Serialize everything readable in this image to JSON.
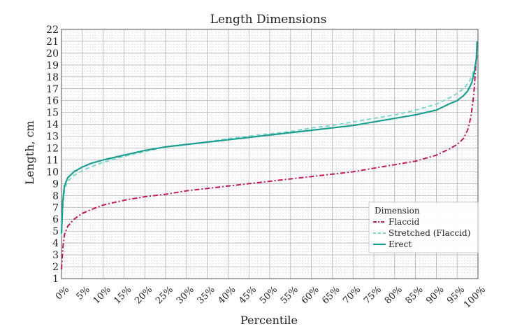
{
  "chart_data": {
    "type": "line",
    "title": "Length Dimensions",
    "xlabel": "Percentile",
    "ylabel": "Length, cm",
    "xlim": [
      0,
      100
    ],
    "ylim": [
      1,
      22
    ],
    "x_ticks": [
      0,
      5,
      10,
      15,
      20,
      25,
      30,
      35,
      40,
      45,
      50,
      55,
      60,
      65,
      70,
      75,
      80,
      85,
      90,
      95,
      100
    ],
    "x_tick_labels": [
      "0%",
      "5%",
      "10%",
      "15%",
      "20%",
      "25%",
      "30%",
      "35%",
      "40%",
      "45%",
      "50%",
      "55%",
      "60%",
      "65%",
      "70%",
      "75%",
      "80%",
      "85%",
      "90%",
      "95%",
      "100%"
    ],
    "y_ticks": [
      1,
      2,
      3,
      4,
      5,
      6,
      7,
      8,
      9,
      10,
      11,
      12,
      13,
      14,
      15,
      16,
      17,
      18,
      19,
      20,
      21,
      22
    ],
    "grid": true,
    "legend": {
      "title": "Dimension",
      "position": "bottom-right"
    },
    "series": [
      {
        "name": "Flaccid",
        "color": "#c2185b",
        "style": "dashdot",
        "points": [
          [
            0,
            1.8
          ],
          [
            0.3,
            3.5
          ],
          [
            0.7,
            4.7
          ],
          [
            1.5,
            5.4
          ],
          [
            3,
            6
          ],
          [
            5,
            6.5
          ],
          [
            7,
            6.8
          ],
          [
            10,
            7.2
          ],
          [
            15,
            7.6
          ],
          [
            20,
            7.9
          ],
          [
            25,
            8.1
          ],
          [
            30,
            8.4
          ],
          [
            35,
            8.6
          ],
          [
            40,
            8.8
          ],
          [
            45,
            9.0
          ],
          [
            50,
            9.2
          ],
          [
            55,
            9.4
          ],
          [
            60,
            9.6
          ],
          [
            65,
            9.8
          ],
          [
            70,
            10.0
          ],
          [
            75,
            10.3
          ],
          [
            80,
            10.6
          ],
          [
            85,
            10.9
          ],
          [
            90,
            11.4
          ],
          [
            93,
            11.9
          ],
          [
            95,
            12.3
          ],
          [
            96.5,
            12.8
          ],
          [
            97.5,
            13.5
          ],
          [
            98.3,
            14.6
          ],
          [
            99,
            16.5
          ],
          [
            99.5,
            19.0
          ],
          [
            99.8,
            20.0
          ]
        ]
      },
      {
        "name": "Stretched (Flaccid)",
        "color": "#7fd6cc",
        "style": "dashed",
        "points": [
          [
            0,
            4.6
          ],
          [
            0.3,
            7.0
          ],
          [
            0.7,
            8.5
          ],
          [
            1.5,
            9.2
          ],
          [
            3,
            9.7
          ],
          [
            5,
            10.1
          ],
          [
            7,
            10.4
          ],
          [
            10,
            10.8
          ],
          [
            15,
            11.3
          ],
          [
            20,
            11.7
          ],
          [
            25,
            12.1
          ],
          [
            30,
            12.3
          ],
          [
            35,
            12.5
          ],
          [
            40,
            12.8
          ],
          [
            45,
            13.0
          ],
          [
            50,
            13.2
          ],
          [
            55,
            13.4
          ],
          [
            60,
            13.7
          ],
          [
            65,
            13.9
          ],
          [
            70,
            14.2
          ],
          [
            75,
            14.5
          ],
          [
            80,
            14.8
          ],
          [
            85,
            15.2
          ],
          [
            90,
            15.7
          ],
          [
            93,
            16.2
          ],
          [
            95,
            16.6
          ],
          [
            96.5,
            17.0
          ],
          [
            97.5,
            17.4
          ],
          [
            98.5,
            18.0
          ],
          [
            99.2,
            18.8
          ],
          [
            99.7,
            19.5
          ]
        ]
      },
      {
        "name": "Erect",
        "color": "#1a9e8f",
        "style": "solid",
        "points": [
          [
            0,
            4.8
          ],
          [
            0.3,
            7.5
          ],
          [
            0.7,
            8.8
          ],
          [
            1.5,
            9.5
          ],
          [
            3,
            10.0
          ],
          [
            5,
            10.4
          ],
          [
            7,
            10.7
          ],
          [
            10,
            11.0
          ],
          [
            15,
            11.4
          ],
          [
            20,
            11.8
          ],
          [
            25,
            12.1
          ],
          [
            30,
            12.3
          ],
          [
            35,
            12.5
          ],
          [
            40,
            12.7
          ],
          [
            45,
            12.9
          ],
          [
            50,
            13.1
          ],
          [
            55,
            13.3
          ],
          [
            60,
            13.5
          ],
          [
            65,
            13.7
          ],
          [
            70,
            13.9
          ],
          [
            75,
            14.2
          ],
          [
            80,
            14.5
          ],
          [
            85,
            14.8
          ],
          [
            90,
            15.2
          ],
          [
            93,
            15.7
          ],
          [
            95,
            16.0
          ],
          [
            96.5,
            16.4
          ],
          [
            97.5,
            16.8
          ],
          [
            98.5,
            17.5
          ],
          [
            99.2,
            18.5
          ],
          [
            99.6,
            19.5
          ],
          [
            99.8,
            21.0
          ]
        ]
      }
    ]
  }
}
